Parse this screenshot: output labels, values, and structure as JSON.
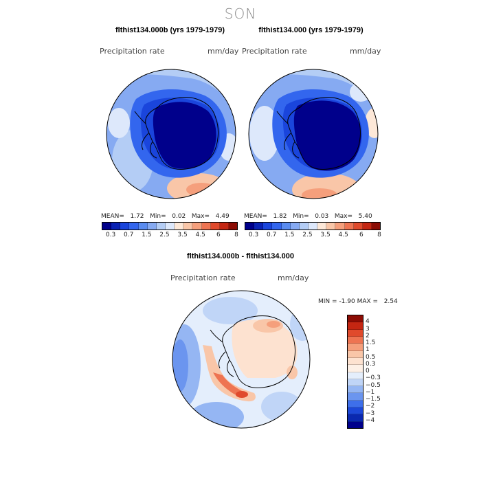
{
  "figure": {
    "season": "SON"
  },
  "panel_left": {
    "title": "flthist134.000b (yrs 1979-1979)",
    "variable": "Precipitation rate",
    "units": "mm/day",
    "stats": {
      "mean_label": "MEAN=",
      "mean": "1.72",
      "min_label": "Min=",
      "min": "0.02",
      "max_label": "Max=",
      "max": "4.49"
    }
  },
  "panel_right": {
    "title": "flthist134.000 (yrs 1979-1979)",
    "variable": "Precipitation rate",
    "units": "mm/day",
    "stats": {
      "mean_label": "MEAN=",
      "mean": "1.82",
      "min_label": "Min=",
      "min": "0.03",
      "max_label": "Max=",
      "max": "5.40"
    }
  },
  "abs_colorbar": {
    "ticks": [
      "0.3",
      "0.7",
      "1.5",
      "2.5",
      "3.5",
      "4.5",
      "6",
      "8"
    ],
    "colors": [
      "#00008b",
      "#0a22b4",
      "#1a45dc",
      "#3366ee",
      "#5a8cf0",
      "#86aaf2",
      "#b4cdf5",
      "#dde8fb",
      "#fde8d8",
      "#f9c6a8",
      "#f59f7c",
      "#ee7452",
      "#e04a2c",
      "#c42612",
      "#8c0c04"
    ]
  },
  "panel_diff": {
    "title": "flthist134.000b - flthist134.000",
    "variable": "Precipitation rate",
    "units": "mm/day",
    "stats": {
      "min_label": "MIN =",
      "min": "-1.90",
      "max_label": "MAX =",
      "max": "2.54"
    }
  },
  "diff_colorbar": {
    "ticks": [
      "4",
      "3",
      "2",
      "1.5",
      "1",
      "0.5",
      "0.3",
      "0",
      "−0.3",
      "−0.5",
      "−1",
      "−1.5",
      "−2",
      "−3",
      "−4"
    ],
    "colors": [
      "#8c0c04",
      "#c42612",
      "#e04a2c",
      "#ee7452",
      "#f59f7c",
      "#f9c6a8",
      "#fde2d0",
      "#fdf0e6",
      "#e4eefc",
      "#c0d5f7",
      "#95b6f3",
      "#6b95ef",
      "#3e6fea",
      "#1d48d8",
      "#0a28b0",
      "#00008b"
    ]
  }
}
